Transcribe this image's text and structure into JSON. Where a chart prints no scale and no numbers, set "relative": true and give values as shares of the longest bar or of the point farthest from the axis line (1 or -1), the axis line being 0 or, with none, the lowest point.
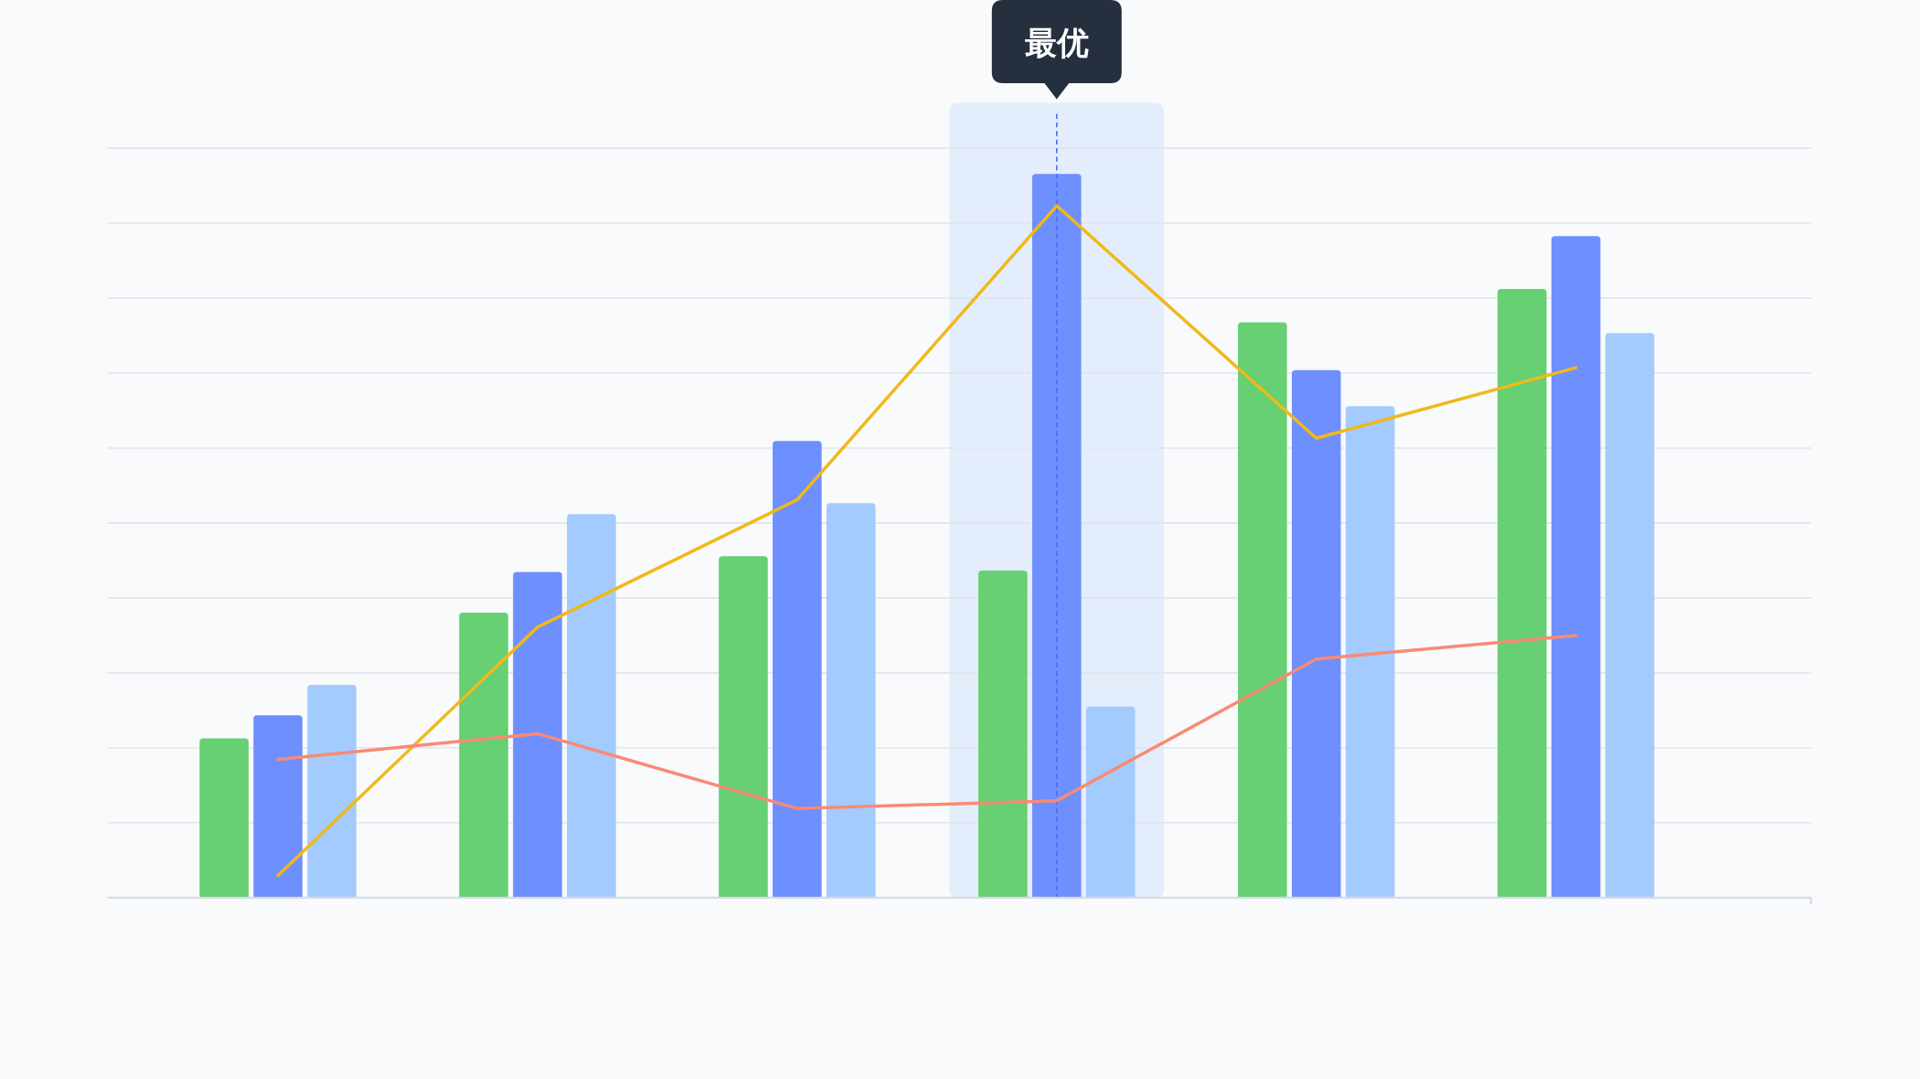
{
  "chart_data": [
    {
      "type": "bar",
      "relative": true,
      "grid": "y",
      "categories": [
        null,
        null,
        null,
        null,
        null,
        null
      ],
      "series": [
        {
          "color": "#66d073",
          "values": [
            0.22,
            0.394,
            0.472,
            0.452,
            0.795,
            0.841
          ]
        },
        {
          "color": "#6e8ffe",
          "values": [
            0.252,
            0.45,
            0.631,
            1,
            0.729,
            0.914
          ]
        },
        {
          "color": "#a3cbfd",
          "values": [
            0.294,
            0.53,
            0.545,
            0.264,
            0.679,
            0.78
          ]
        }
      ],
      "annotations": [
        "最优"
      ]
    },
    {
      "type": "line",
      "relative": true,
      "categories": [
        null,
        null,
        null,
        null,
        null,
        null
      ],
      "series": [
        {
          "color": "#f0b91a",
          "values": [
            0.032,
            0.391,
            0.575,
            1,
            0.664,
            0.766
          ]
        },
        {
          "color": "#f98a74",
          "values": [
            0.2,
            0.237,
            0.129,
            0.14,
            0.345,
            0.379
          ]
        }
      ]
    }
  ]
}
